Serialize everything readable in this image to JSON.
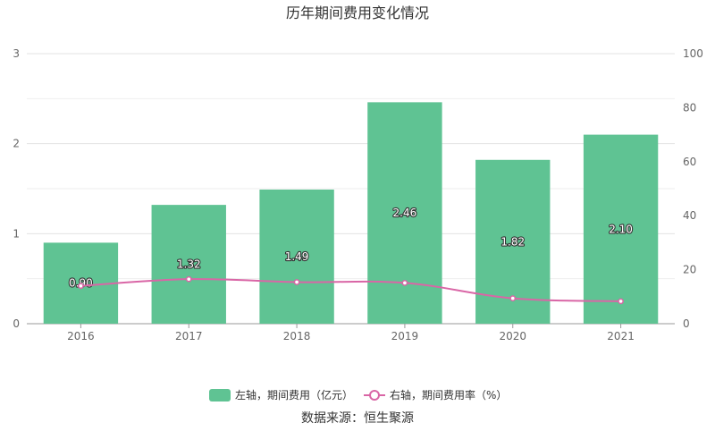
{
  "chart_data": {
    "type": "bar",
    "title": "历年期间费用变化情况",
    "categories": [
      "2016",
      "2017",
      "2018",
      "2019",
      "2020",
      "2021"
    ],
    "series": [
      {
        "name": "左轴，期间费用（亿元）",
        "type": "bar",
        "axis": "left",
        "color": "#5fc393",
        "values": [
          0.9,
          1.32,
          1.49,
          2.46,
          1.82,
          2.1
        ],
        "labels": [
          "0.90",
          "1.32",
          "1.49",
          "2.46",
          "1.82",
          "2.10"
        ]
      },
      {
        "name": "右轴，期间费用率（%）",
        "type": "line",
        "axis": "right",
        "color": "#d966a6",
        "values": [
          14.0,
          16.5,
          15.4,
          15.1,
          9.4,
          8.3
        ]
      }
    ],
    "y_left": {
      "min": 0,
      "max": 3,
      "ticks": [
        "0",
        "1",
        "2",
        "3"
      ]
    },
    "y_right": {
      "min": 0,
      "max": 100,
      "ticks": [
        "0",
        "20",
        "40",
        "60",
        "80",
        "100"
      ]
    },
    "grid": true,
    "legend_position": "bottom"
  },
  "source_text": "数据来源：恒生聚源"
}
